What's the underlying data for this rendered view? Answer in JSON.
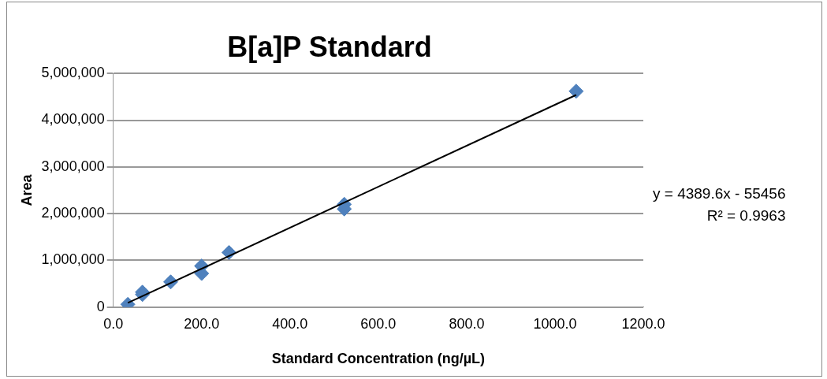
{
  "chart_data": {
    "type": "scatter",
    "title": "B[a]P Standard",
    "xlabel": "Standard Concentration (ng/µL)",
    "ylabel": "Area",
    "xlim": [
      0,
      1200
    ],
    "xticks": [
      {
        "value": 0,
        "label": "0.0"
      },
      {
        "value": 200,
        "label": "200.0"
      },
      {
        "value": 400,
        "label": "400.0"
      },
      {
        "value": 600,
        "label": "600.0"
      },
      {
        "value": 800,
        "label": "800.0"
      },
      {
        "value": 1000,
        "label": "1000.0"
      },
      {
        "value": 1200,
        "label": "1200.0"
      }
    ],
    "ylim": [
      0,
      5000000
    ],
    "yticks": [
      {
        "value": 0,
        "label": "0"
      },
      {
        "value": 1000000,
        "label": "1,000,000"
      },
      {
        "value": 2000000,
        "label": "2,000,000"
      },
      {
        "value": 3000000,
        "label": "3,000,000"
      },
      {
        "value": 4000000,
        "label": "4,000,000"
      },
      {
        "value": 5000000,
        "label": "5,000,000"
      }
    ],
    "grid": "y",
    "legend": false,
    "marker": "diamond",
    "series": [
      {
        "type": "scatter",
        "color": "#4f81bd",
        "x": [
          33,
          66,
          66,
          130,
          200,
          200,
          262,
          523,
          523,
          1048
        ],
        "values": [
          60000,
          320000,
          270000,
          540000,
          880000,
          720000,
          1170000,
          2200000,
          2100000,
          4620000
        ]
      },
      {
        "type": "line",
        "color": "#000000",
        "x": [
          33,
          1048
        ],
        "values": [
          90000,
          4540000
        ],
        "marker": "none"
      }
    ],
    "annotations": [
      "y = 4389.6x - 55456",
      "R² = 0.9963"
    ]
  }
}
